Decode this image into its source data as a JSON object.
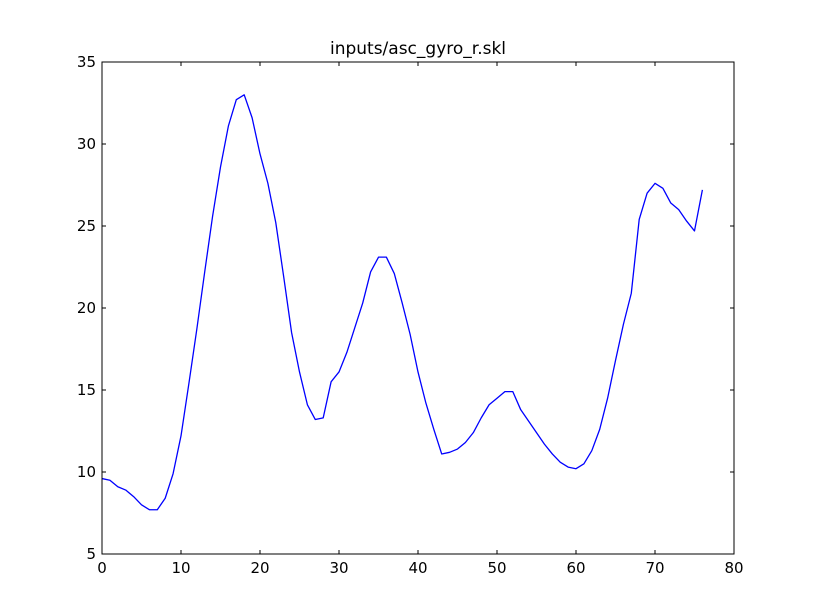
{
  "chart_data": {
    "type": "line",
    "title": "inputs/asc_gyro_r.skl",
    "xlabel": "",
    "ylabel": "",
    "xlim": [
      0,
      80
    ],
    "ylim": [
      5,
      35
    ],
    "xticks": [
      0,
      10,
      20,
      30,
      40,
      50,
      60,
      70,
      80
    ],
    "yticks": [
      5,
      10,
      15,
      20,
      25,
      30,
      35
    ],
    "grid": false,
    "line_color": "#0000ff",
    "series": [
      {
        "x": [
          0,
          1,
          2,
          3,
          4,
          5,
          6,
          7,
          8,
          9,
          10,
          11,
          12,
          13,
          14,
          15,
          16,
          17,
          18,
          19,
          20,
          21,
          22,
          23,
          24,
          25,
          26,
          27,
          28,
          29,
          30,
          31,
          32,
          33,
          34,
          35,
          36,
          37,
          38,
          39,
          40,
          41,
          42,
          43,
          44,
          45,
          46,
          47,
          48,
          49,
          50,
          51,
          52,
          53,
          54,
          55,
          56,
          57,
          58,
          59,
          60,
          61,
          62,
          63,
          64,
          65,
          66,
          67,
          68,
          69,
          70,
          71,
          72,
          73,
          74,
          75,
          76
        ],
        "y": [
          9.6,
          9.5,
          9.1,
          8.9,
          8.5,
          8.0,
          7.7,
          7.7,
          8.4,
          9.9,
          12.2,
          15.4,
          18.7,
          22.2,
          25.6,
          28.6,
          31.1,
          32.7,
          33.0,
          31.6,
          29.4,
          27.6,
          25.2,
          21.9,
          18.5,
          16.1,
          14.1,
          13.2,
          13.3,
          15.5,
          16.1,
          17.3,
          18.8,
          20.3,
          22.2,
          23.1,
          23.1,
          22.1,
          20.3,
          18.4,
          16.1,
          14.2,
          12.6,
          11.1,
          11.2,
          11.4,
          11.8,
          12.4,
          13.3,
          14.1,
          14.5,
          14.9,
          14.9,
          13.8,
          13.1,
          12.4,
          11.7,
          11.1,
          10.6,
          10.3,
          10.2,
          10.5,
          11.3,
          12.6,
          14.5,
          16.8,
          19.0,
          20.9,
          25.4,
          27.0,
          27.6,
          27.3,
          26.4,
          26.0,
          25.3,
          24.7,
          27.2
        ]
      }
    ]
  }
}
